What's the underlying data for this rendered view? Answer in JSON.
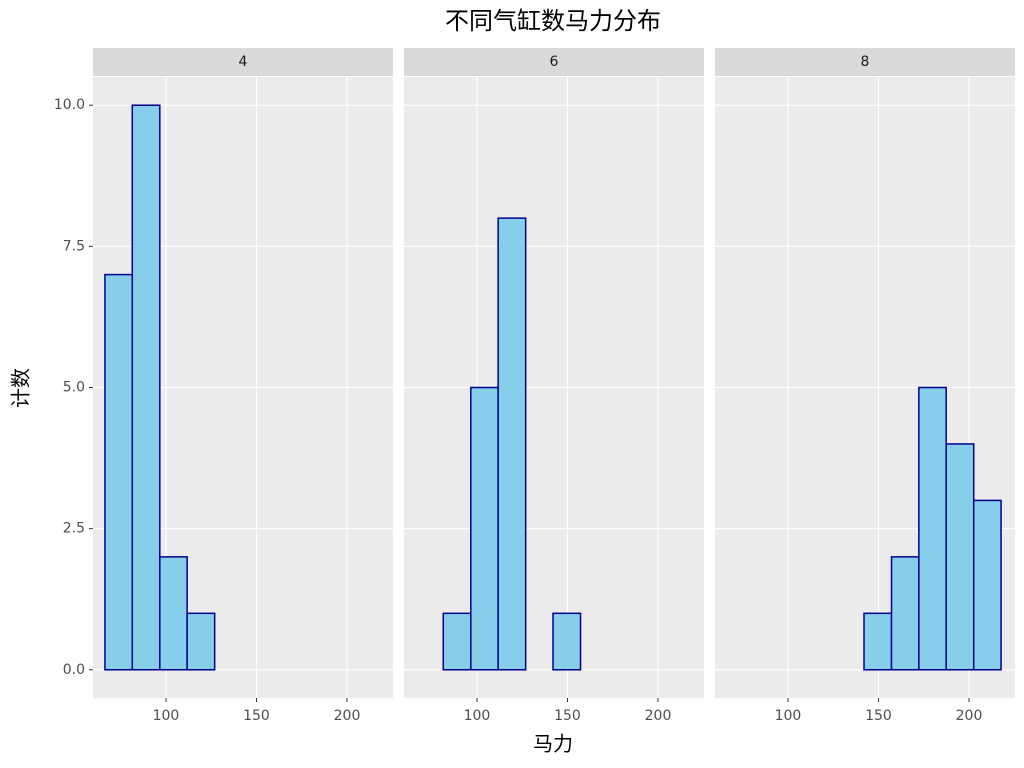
{
  "chart_data": {
    "type": "histogram",
    "title": "不同气缸数马力分布",
    "x_label": "马力",
    "y_label": "计数",
    "bins": [
      66.3,
      81.4,
      96.6,
      111.7,
      126.9,
      142.0,
      157.2,
      172.3,
      187.4,
      202.6,
      217.7
    ],
    "facets": [
      {
        "name": "4",
        "values": [
          7,
          10,
          2,
          1,
          0,
          0,
          0,
          0,
          0,
          0
        ]
      },
      {
        "name": "6",
        "values": [
          0,
          1,
          5,
          8,
          0,
          1,
          0,
          0,
          0,
          0
        ]
      },
      {
        "name": "8",
        "values": [
          0,
          0,
          0,
          0,
          0,
          1,
          2,
          5,
          4,
          3
        ]
      }
    ],
    "color": "#87ceeb",
    "edgecolor": "#00008b",
    "xlim": [
      59.7,
      225.4
    ],
    "ylim": [
      -0.5,
      10.5
    ],
    "xticks": [
      100,
      150,
      200
    ],
    "yticks": [
      {
        "value": 0,
        "label": "0.0"
      },
      {
        "value": 2.5,
        "label": "2.5"
      },
      {
        "value": 5,
        "label": "5.0"
      },
      {
        "value": 7.5,
        "label": "7.5"
      },
      {
        "value": 10,
        "label": "10.0"
      }
    ],
    "grid": true
  }
}
